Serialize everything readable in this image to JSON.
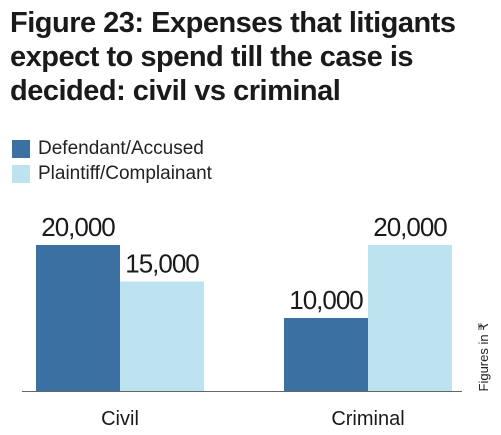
{
  "title": "Figure 23: Expenses that litigants expect to spend till the case is decided: civil vs criminal",
  "legend": [
    {
      "label": "Defendant/Accused",
      "color": "#3b70a3"
    },
    {
      "label": "Plaintiff/Complainant",
      "color": "#bde2f0"
    }
  ],
  "units_note": "Figures in ₹",
  "chart_data": {
    "type": "bar",
    "categories": [
      "Civil",
      "Criminal"
    ],
    "series": [
      {
        "name": "Defendant/Accused",
        "values": [
          20000,
          10000
        ],
        "labels": [
          "20,000",
          "10,000"
        ],
        "color": "#3b70a3"
      },
      {
        "name": "Plaintiff/Complainant",
        "values": [
          15000,
          20000
        ],
        "labels": [
          "15,000",
          "20,000"
        ],
        "color": "#bde2f0"
      }
    ],
    "ylim": [
      0,
      20000
    ],
    "grid": false,
    "legend_position": "top-left"
  }
}
